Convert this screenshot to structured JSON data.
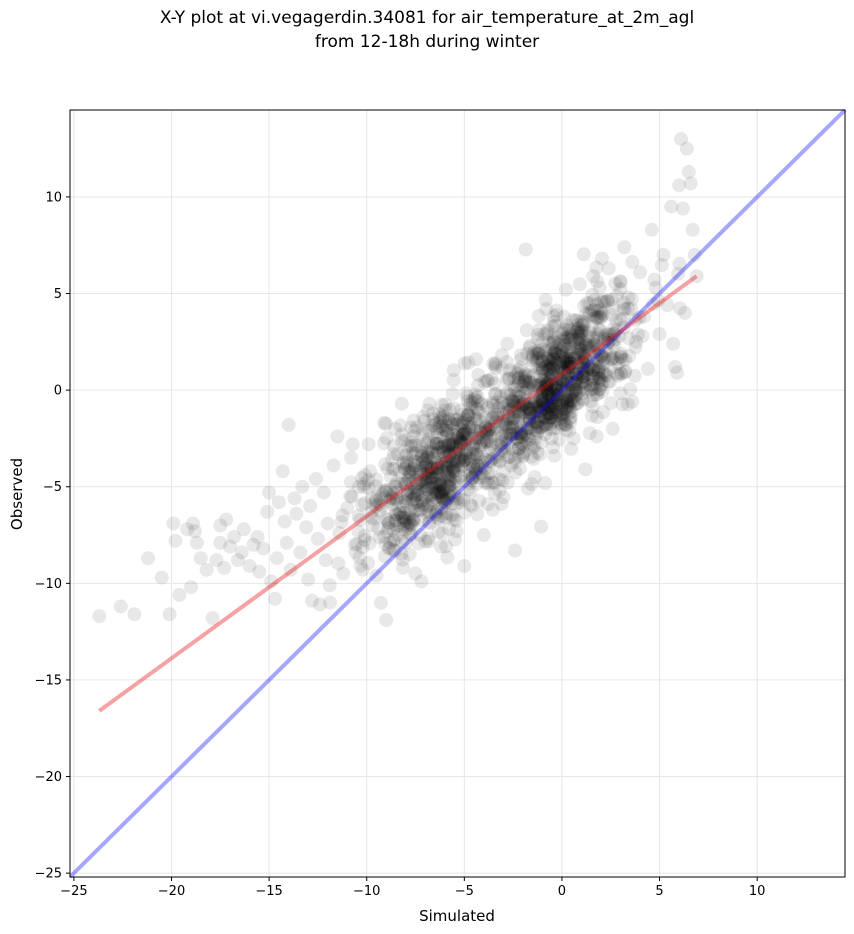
{
  "chart_data": {
    "type": "scatter",
    "title_line1": "X-Y plot at vi.vegagerdin.34081 for air_temperature_at_2m_agl",
    "title_line2": "from 12-18h during winter",
    "xlabel": "Simulated",
    "ylabel": "Observed",
    "xlim": [
      -25.2,
      14.5
    ],
    "ylim": [
      -25.2,
      14.5
    ],
    "xticks": [
      -25,
      -20,
      -15,
      -10,
      -5,
      0,
      5,
      10
    ],
    "yticks": [
      -25,
      -20,
      -15,
      -10,
      -5,
      0,
      5,
      10
    ],
    "grid": true,
    "colors": {
      "points": "#000000",
      "identity_line": "#0000ff",
      "regression_line": "#e8141c"
    },
    "identity_line": {
      "x": [
        -25.2,
        14.5
      ],
      "y": [
        -25.2,
        14.5
      ]
    },
    "regression_line": {
      "x": [
        -23.7,
        6.9
      ],
      "y": [
        -16.6,
        5.9
      ]
    },
    "series": [
      {
        "values_sparse": [
          [
            -23.7,
            -11.7
          ],
          [
            -22.6,
            -11.2
          ],
          [
            -21.9,
            -11.6
          ],
          [
            -21.2,
            -8.7
          ],
          [
            -20.5,
            -9.7
          ],
          [
            -20.1,
            -11.6
          ],
          [
            -19.9,
            -6.9
          ],
          [
            -19.8,
            -7.8
          ],
          [
            -19.6,
            -10.6
          ],
          [
            -19.2,
            -7.2
          ],
          [
            -19.0,
            -10.2
          ],
          [
            -18.9,
            -6.9
          ],
          [
            -18.8,
            -7.3
          ],
          [
            -18.7,
            -7.9
          ],
          [
            -18.5,
            -8.7
          ],
          [
            -18.2,
            -9.3
          ],
          [
            -17.9,
            -11.8
          ],
          [
            -17.7,
            -8.8
          ],
          [
            -17.5,
            -7.0
          ],
          [
            -17.5,
            -7.9
          ],
          [
            -17.3,
            -9.2
          ],
          [
            -17.2,
            -6.7
          ],
          [
            -17.0,
            -8.1
          ],
          [
            -16.8,
            -7.6
          ],
          [
            -16.6,
            -8.8
          ],
          [
            -16.4,
            -8.4
          ],
          [
            -16.3,
            -7.2
          ],
          [
            -16.0,
            -9.1
          ],
          [
            -15.8,
            -8.0
          ],
          [
            -15.6,
            -7.6
          ],
          [
            -15.5,
            -9.4
          ],
          [
            -15.3,
            -8.2
          ],
          [
            -15.1,
            -6.3
          ],
          [
            -15.0,
            -5.3
          ],
          [
            -14.9,
            -9.9
          ],
          [
            -14.7,
            -10.8
          ],
          [
            -14.6,
            -8.7
          ],
          [
            -14.5,
            -5.8
          ],
          [
            -14.3,
            -4.2
          ],
          [
            -14.2,
            -6.8
          ],
          [
            -14.1,
            -7.9
          ],
          [
            -14.0,
            -1.8
          ],
          [
            -13.9,
            -9.3
          ],
          [
            -13.7,
            -5.6
          ],
          [
            -13.6,
            -6.4
          ],
          [
            -13.4,
            -8.4
          ],
          [
            -13.3,
            -5.0
          ],
          [
            -13.1,
            -7.1
          ],
          [
            -13.0,
            -9.8
          ],
          [
            -12.9,
            -6.0
          ],
          [
            -12.8,
            -10.9
          ],
          [
            -12.6,
            -4.6
          ],
          [
            -12.5,
            -7.7
          ],
          [
            -12.4,
            -11.1
          ],
          [
            -12.2,
            -5.3
          ],
          [
            -12.1,
            -8.8
          ],
          [
            -12.0,
            -6.9
          ],
          [
            -11.9,
            -10.1
          ],
          [
            -11.7,
            -3.9
          ],
          [
            -11.5,
            -2.4
          ],
          [
            -11.4,
            -7.4
          ],
          [
            -11.2,
            -9.5
          ],
          [
            -11.0,
            -6.1
          ],
          [
            -10.8,
            -3.5
          ],
          [
            -10.6,
            -8.0
          ],
          [
            -10.4,
            -5.0
          ],
          [
            -10.2,
            -9.3
          ],
          [
            -10.1,
            -4.4
          ],
          [
            -9.9,
            -2.8
          ],
          [
            -9.7,
            -7.0
          ],
          [
            -9.5,
            -9.6
          ],
          [
            -9.3,
            -5.6
          ],
          [
            -9.1,
            -1.7
          ],
          [
            -9.0,
            -11.9
          ],
          [
            -8.8,
            -7.9
          ],
          [
            -8.6,
            -3.3
          ],
          [
            -8.4,
            -6.4
          ],
          [
            -8.2,
            -0.7
          ],
          [
            -8.0,
            -4.9
          ],
          [
            -7.8,
            -8.5
          ],
          [
            -7.6,
            -2.4
          ],
          [
            -7.4,
            -5.8
          ],
          [
            -7.2,
            -9.9
          ],
          [
            -7.0,
            -3.9
          ],
          [
            -6.8,
            -6.9
          ],
          [
            -6.6,
            -1.2
          ],
          [
            -6.4,
            -4.6
          ],
          [
            -6.2,
            -8.1
          ],
          [
            -6.0,
            -2.9
          ],
          [
            -5.8,
            -5.4
          ],
          [
            -5.6,
            -0.2
          ],
          [
            -5.4,
            -7.3
          ],
          [
            -5.2,
            -3.6
          ],
          [
            -5.0,
            -9.1
          ],
          [
            -4.8,
            -1.9
          ],
          [
            -4.6,
            -6.0
          ],
          [
            -4.4,
            1.6
          ],
          [
            -4.2,
            -4.1
          ],
          [
            -4.0,
            -7.5
          ],
          [
            -3.8,
            -0.9
          ],
          [
            -3.6,
            -2.8
          ],
          [
            -3.4,
            1.4
          ],
          [
            -3.2,
            -5.2
          ],
          [
            -3.0,
            -1.6
          ],
          [
            -2.8,
            2.4
          ],
          [
            -2.6,
            -3.9
          ],
          [
            -2.4,
            -8.3
          ],
          [
            -2.2,
            0.4
          ],
          [
            -2.0,
            -2.4
          ],
          [
            -1.8,
            3.1
          ],
          [
            -1.6,
            -0.7
          ],
          [
            -1.4,
            -4.5
          ],
          [
            -1.2,
            1.9
          ],
          [
            -1.0,
            -1.9
          ],
          [
            -0.8,
            4.2
          ],
          [
            -0.6,
            0.1
          ],
          [
            -0.4,
            -3.4
          ],
          [
            -0.2,
            2.7
          ],
          [
            0.0,
            -0.8
          ],
          [
            0.2,
            5.2
          ],
          [
            0.4,
            1.4
          ],
          [
            0.6,
            -2.5
          ],
          [
            0.8,
            3.6
          ],
          [
            1.0,
            0.4
          ],
          [
            1.2,
            -4.1
          ],
          [
            1.4,
            2.2
          ],
          [
            1.6,
            5.9
          ],
          [
            1.8,
            -1.4
          ],
          [
            2.0,
            4.0
          ],
          [
            2.2,
            0.9
          ],
          [
            2.4,
            6.3
          ],
          [
            2.6,
            -2.0
          ],
          [
            2.8,
            3.1
          ],
          [
            3.0,
            1.7
          ],
          [
            3.2,
            7.4
          ],
          [
            3.4,
            4.8
          ],
          [
            3.6,
            -0.6
          ],
          [
            3.8,
            2.5
          ],
          [
            4.0,
            6.1
          ],
          [
            4.2,
            3.8
          ],
          [
            4.4,
            1.1
          ],
          [
            4.6,
            8.3
          ],
          [
            4.8,
            5.3
          ],
          [
            5.0,
            2.9
          ],
          [
            5.2,
            7.0
          ],
          [
            5.4,
            4.4
          ],
          [
            5.6,
            9.5
          ],
          [
            5.8,
            1.2
          ],
          [
            6.0,
            10.6
          ],
          [
            6.1,
            13.0
          ],
          [
            6.2,
            9.4
          ],
          [
            6.4,
            12.5
          ],
          [
            6.5,
            11.3
          ],
          [
            6.6,
            10.7
          ],
          [
            6.7,
            8.3
          ],
          [
            6.8,
            7.0
          ],
          [
            6.9,
            5.9
          ],
          [
            5.9,
            0.9
          ],
          [
            5.7,
            2.4
          ],
          [
            6.3,
            4.0
          ]
        ]
      }
    ]
  }
}
